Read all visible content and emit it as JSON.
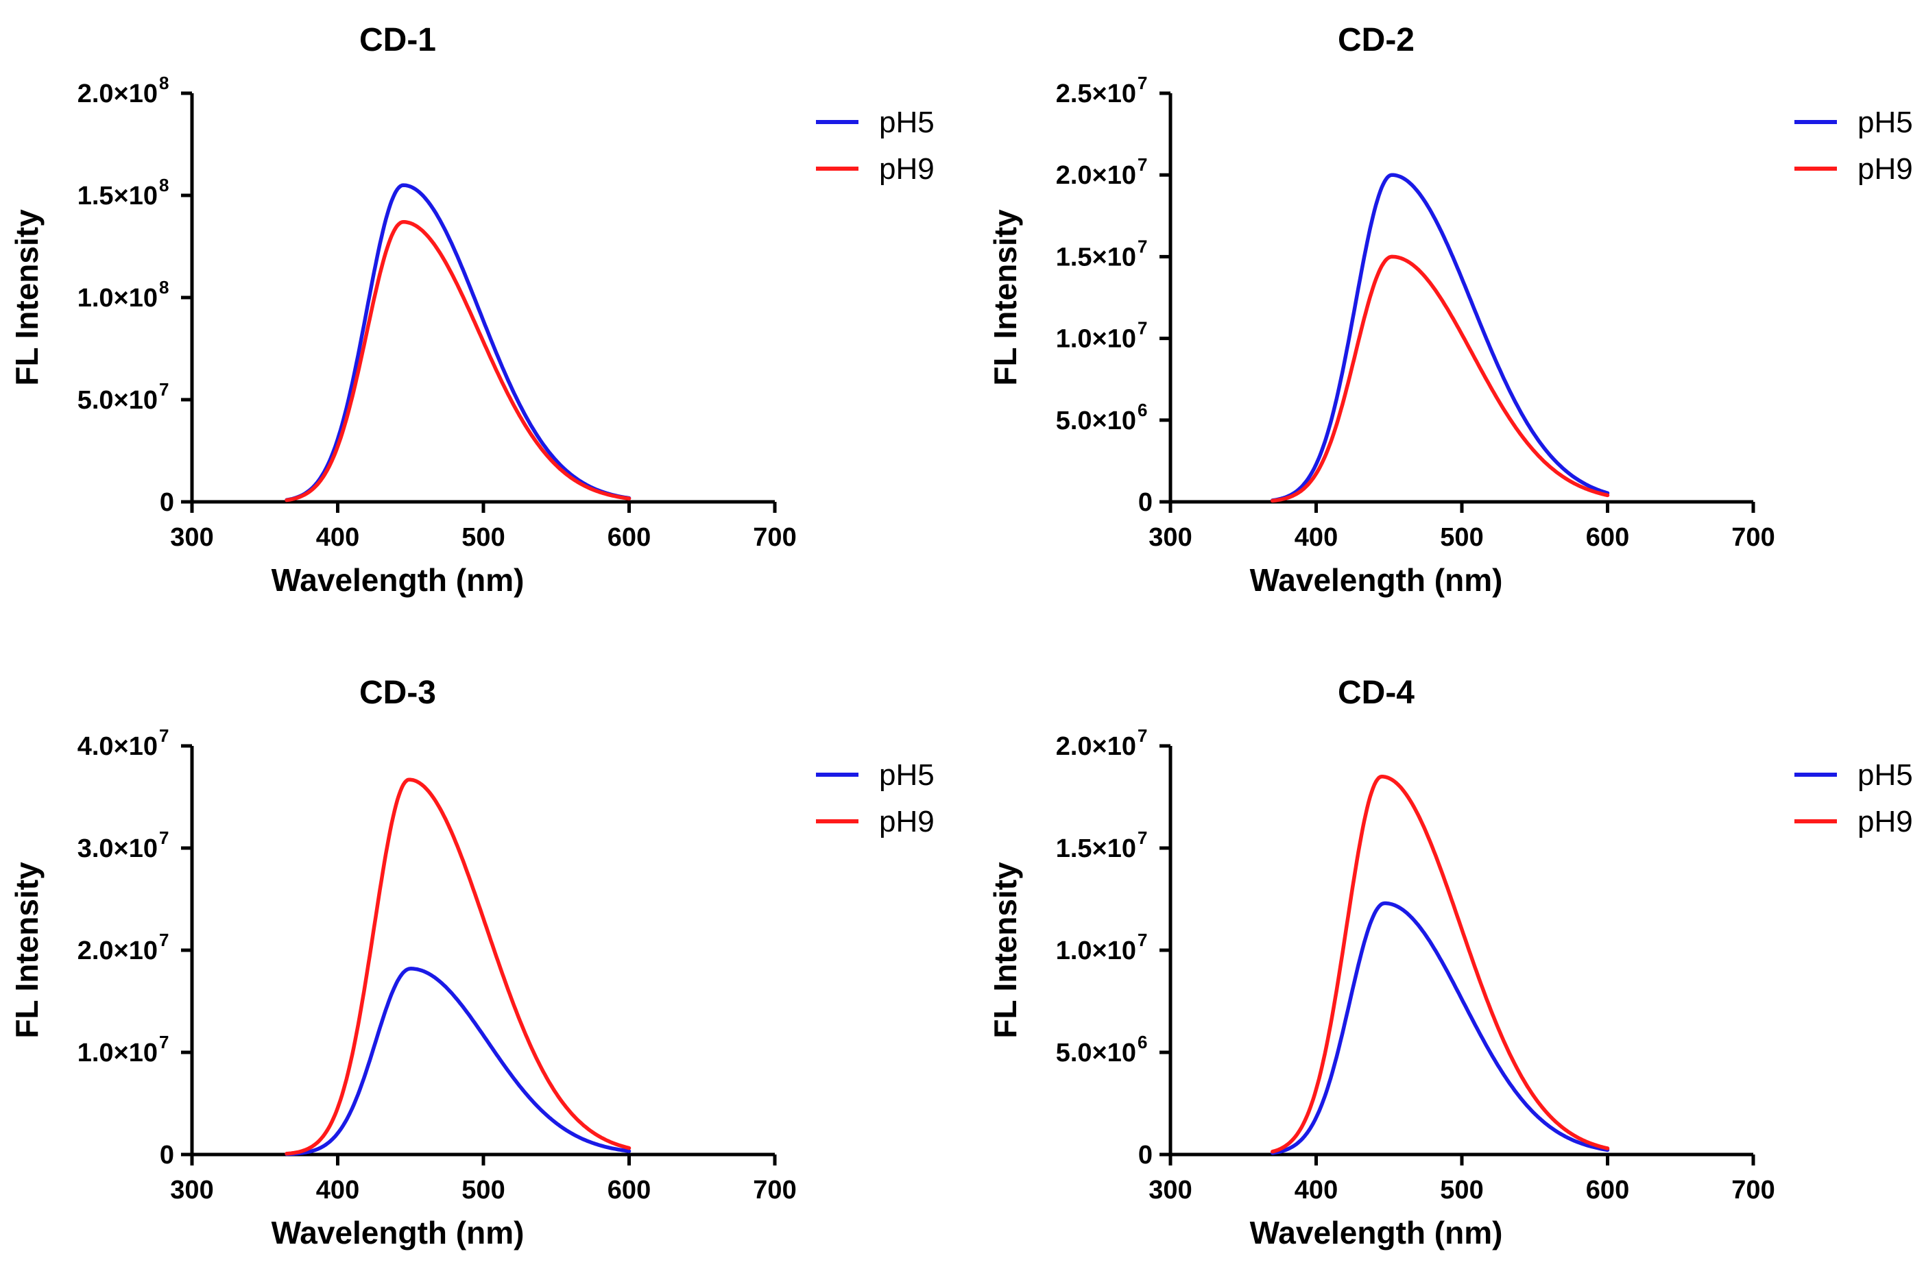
{
  "chart_data": [
    {
      "type": "line",
      "title": "CD-1",
      "xlabel": "Wavelength (nm)",
      "ylabel": "FL Intensity",
      "xlim": [
        300,
        700
      ],
      "ylim": [
        0,
        200000000
      ],
      "xticks": [
        300,
        400,
        500,
        600,
        700
      ],
      "xtick_labels": [
        "300",
        "400",
        "500",
        "600",
        "700"
      ],
      "yticks": [
        {
          "value": 0,
          "mantissa": "0",
          "exponent": ""
        },
        {
          "value": 50000000,
          "mantissa": "5.0×10",
          "exponent": "7"
        },
        {
          "value": 100000000,
          "mantissa": "1.0×10",
          "exponent": "8"
        },
        {
          "value": 150000000,
          "mantissa": "1.5×10",
          "exponent": "8"
        },
        {
          "value": 200000000,
          "mantissa": "2.0×10",
          "exponent": "8"
        }
      ],
      "legend_position": "top-right",
      "series": [
        {
          "name": "pH5",
          "color": "#1a1ae6",
          "peak_x": 445,
          "peak_y": 155000000,
          "sigma_left": 25,
          "sigma_right": 52,
          "x": [
            365,
            380,
            390,
            400,
            410,
            420,
            430,
            440,
            445,
            450,
            460,
            470,
            480,
            500,
            520,
            540,
            560,
            580,
            600
          ],
          "y": [
            0,
            1500000,
            6000000,
            22000000,
            62000000,
            105000000,
            136000000,
            152000000,
            155000000,
            154000000,
            146000000,
            130000000,
            110000000,
            73000000,
            42000000,
            20000000,
            9000000,
            4500000,
            1500000
          ]
        },
        {
          "name": "pH9",
          "color": "#ff1a1a",
          "peak_x": 445,
          "peak_y": 137000000,
          "sigma_left": 25,
          "sigma_right": 52,
          "x": [
            365,
            380,
            390,
            400,
            410,
            420,
            430,
            440,
            445,
            450,
            460,
            470,
            480,
            500,
            520,
            540,
            560,
            580,
            600
          ],
          "y": [
            0,
            1200000,
            5000000,
            19000000,
            55000000,
            93000000,
            120000000,
            134000000,
            137000000,
            136000000,
            128000000,
            113000000,
            95000000,
            62000000,
            35000000,
            17000000,
            7500000,
            3500000,
            1000000
          ]
        }
      ]
    },
    {
      "type": "line",
      "title": "CD-2",
      "xlabel": "Wavelength (nm)",
      "ylabel": "FL Intensity",
      "xlim": [
        300,
        700
      ],
      "ylim": [
        0,
        25000000
      ],
      "xticks": [
        300,
        400,
        500,
        600,
        700
      ],
      "xtick_labels": [
        "300",
        "400",
        "500",
        "600",
        "700"
      ],
      "yticks": [
        {
          "value": 0,
          "mantissa": "0",
          "exponent": ""
        },
        {
          "value": 5000000,
          "mantissa": "5.0×10",
          "exponent": "6"
        },
        {
          "value": 10000000,
          "mantissa": "1.0×10",
          "exponent": "7"
        },
        {
          "value": 15000000,
          "mantissa": "1.5×10",
          "exponent": "7"
        },
        {
          "value": 20000000,
          "mantissa": "2.0×10",
          "exponent": "7"
        },
        {
          "value": 25000000,
          "mantissa": "2.5×10",
          "exponent": "7"
        }
      ],
      "legend_position": "top-right",
      "series": [
        {
          "name": "pH5",
          "color": "#1a1ae6",
          "peak_x": 452,
          "peak_y": 20000000,
          "sigma_left": 25,
          "sigma_right": 55,
          "x": [
            370,
            385,
            395,
            405,
            415,
            425,
            435,
            445,
            452,
            460,
            470,
            480,
            500,
            520,
            540,
            560,
            580,
            600
          ],
          "y": [
            0,
            150000,
            800000,
            3000000,
            8000000,
            13500000,
            17500000,
            19700000,
            20000000,
            19400000,
            17500000,
            15000000,
            10000000,
            6000000,
            3200000,
            1500000,
            800000,
            400000
          ]
        },
        {
          "name": "pH9",
          "color": "#ff1a1a",
          "peak_x": 452,
          "peak_y": 15000000,
          "sigma_left": 25,
          "sigma_right": 55,
          "x": [
            370,
            385,
            395,
            405,
            415,
            425,
            435,
            445,
            452,
            460,
            470,
            480,
            500,
            520,
            540,
            560,
            580,
            600
          ],
          "y": [
            0,
            100000,
            500000,
            2000000,
            5800000,
            10000000,
            13200000,
            14800000,
            15000000,
            14500000,
            13000000,
            11000000,
            7200000,
            4200000,
            2200000,
            1000000,
            500000,
            200000
          ]
        }
      ]
    },
    {
      "type": "line",
      "title": "CD-3",
      "xlabel": "Wavelength (nm)",
      "ylabel": "FL Intensity",
      "xlim": [
        300,
        700
      ],
      "ylim": [
        0,
        40000000
      ],
      "xticks": [
        300,
        400,
        500,
        600,
        700
      ],
      "xtick_labels": [
        "300",
        "400",
        "500",
        "600",
        "700"
      ],
      "yticks": [
        {
          "value": 0,
          "mantissa": "0",
          "exponent": ""
        },
        {
          "value": 10000000,
          "mantissa": "1.0×10",
          "exponent": "7"
        },
        {
          "value": 20000000,
          "mantissa": "2.0×10",
          "exponent": "7"
        },
        {
          "value": 30000000,
          "mantissa": "3.0×10",
          "exponent": "7"
        },
        {
          "value": 40000000,
          "mantissa": "4.0×10",
          "exponent": "7"
        }
      ],
      "legend_position": "top-right",
      "series": [
        {
          "name": "pH5",
          "color": "#1a1ae6",
          "peak_x": 450,
          "peak_y": 18200000,
          "sigma_left": 24,
          "sigma_right": 53,
          "x": [
            365,
            380,
            395,
            405,
            415,
            425,
            435,
            445,
            450,
            460,
            470,
            480,
            500,
            520,
            540,
            560,
            580,
            600
          ],
          "y": [
            0,
            100000,
            700000,
            2500000,
            7000000,
            12000000,
            15800000,
            17900000,
            18200000,
            17500000,
            15500000,
            13000000,
            8500000,
            5000000,
            2600000,
            1200000,
            600000,
            300000
          ]
        },
        {
          "name": "pH9",
          "color": "#ff1a1a",
          "peak_x": 449,
          "peak_y": 36700000,
          "sigma_left": 24,
          "sigma_right": 53,
          "x": [
            365,
            380,
            395,
            405,
            415,
            425,
            435,
            445,
            449,
            460,
            470,
            480,
            500,
            520,
            540,
            560,
            580,
            600
          ],
          "y": [
            0,
            300000,
            1800000,
            6500000,
            16500000,
            26500000,
            33500000,
            36400000,
            36700000,
            35000000,
            31000000,
            26000000,
            17000000,
            10000000,
            5000000,
            2400000,
            1100000,
            400000
          ]
        }
      ]
    },
    {
      "type": "line",
      "title": "CD-4",
      "xlabel": "Wavelength (nm)",
      "ylabel": "FL Intensity",
      "xlim": [
        300,
        700
      ],
      "ylim": [
        0,
        20000000
      ],
      "xticks": [
        300,
        400,
        500,
        600,
        700
      ],
      "xtick_labels": [
        "300",
        "400",
        "500",
        "600",
        "700"
      ],
      "yticks": [
        {
          "value": 0,
          "mantissa": "0",
          "exponent": ""
        },
        {
          "value": 5000000,
          "mantissa": "5.0×10",
          "exponent": "6"
        },
        {
          "value": 10000000,
          "mantissa": "1.0×10",
          "exponent": "7"
        },
        {
          "value": 15000000,
          "mantissa": "1.5×10",
          "exponent": "7"
        },
        {
          "value": 20000000,
          "mantissa": "2.0×10",
          "exponent": "7"
        }
      ],
      "legend_position": "top-right",
      "series": [
        {
          "name": "pH5",
          "color": "#1a1ae6",
          "peak_x": 447,
          "peak_y": 12300000,
          "sigma_left": 24,
          "sigma_right": 54,
          "x": [
            370,
            385,
            395,
            405,
            415,
            425,
            435,
            442,
            447,
            455,
            465,
            480,
            500,
            520,
            540,
            560,
            580,
            600
          ],
          "y": [
            0,
            60000,
            400000,
            1600000,
            4700000,
            8100000,
            10800000,
            12000000,
            12300000,
            12000000,
            11000000,
            9000000,
            6000000,
            3500000,
            1800000,
            900000,
            450000,
            200000
          ]
        },
        {
          "name": "pH9",
          "color": "#ff1a1a",
          "peak_x": 445,
          "peak_y": 18500000,
          "sigma_left": 24,
          "sigma_right": 54,
          "x": [
            370,
            385,
            395,
            405,
            415,
            425,
            435,
            440,
            445,
            455,
            465,
            480,
            500,
            520,
            540,
            560,
            580,
            600
          ],
          "y": [
            0,
            120000,
            800000,
            3000000,
            8200000,
            13300000,
            16800000,
            18000000,
            18500000,
            17900000,
            16200000,
            13000000,
            8200000,
            4600000,
            2300000,
            1000000,
            450000,
            200000
          ]
        }
      ]
    }
  ]
}
